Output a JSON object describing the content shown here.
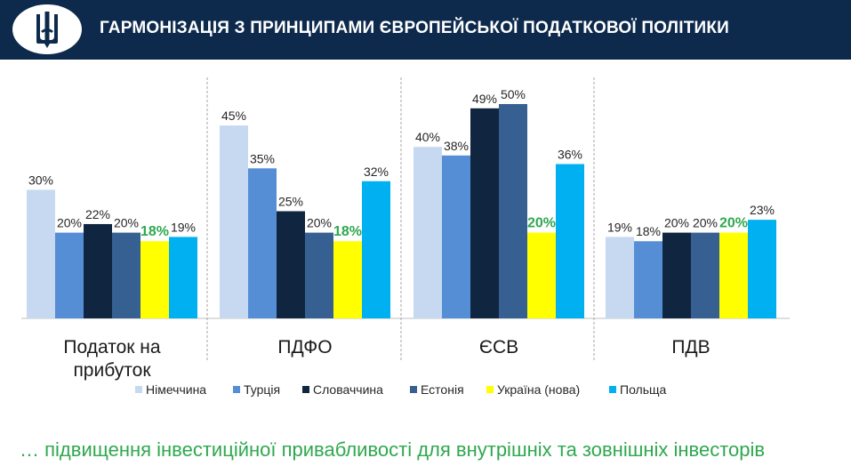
{
  "header": {
    "title": "ГАРМОНІЗАЦІЯ З ПРИНЦИПАМИ ЄВРОПЕЙСЬКОЇ ПОДАТКОВОЇ ПОЛІТИКИ",
    "logo_icon": "trident-emblem-icon"
  },
  "chart_data": {
    "type": "bar",
    "categories": [
      "Податок на прибуток",
      "ПДФО",
      "ЄСВ",
      "ПДВ"
    ],
    "series": [
      {
        "name": "Німеччина",
        "color": "#c6d9f1",
        "values": [
          30,
          45,
          40,
          19
        ]
      },
      {
        "name": "Турція",
        "color": "#558ed5",
        "values": [
          20,
          35,
          38,
          18
        ]
      },
      {
        "name": "Словаччина",
        "color": "#10253f",
        "values": [
          22,
          25,
          49,
          20
        ]
      },
      {
        "name": "Естонія",
        "color": "#376092",
        "values": [
          20,
          20,
          50,
          20
        ]
      },
      {
        "name": "Україна (нова)",
        "color": "#ffff00",
        "values": [
          18,
          18,
          20,
          20
        ]
      },
      {
        "name": "Польща",
        "color": "#00b0f0",
        "values": [
          19,
          32,
          36,
          23
        ]
      }
    ],
    "data_labels": [
      [
        "30%",
        "20%",
        "22%",
        "20%",
        "18%",
        "19%"
      ],
      [
        "45%",
        "35%",
        "25%",
        "20%",
        "18%",
        "32%"
      ],
      [
        "40%",
        "38%",
        "49%",
        "50%",
        "20%",
        "36%"
      ],
      [
        "19%",
        "18%",
        "20%",
        "20%",
        "20%",
        "23%"
      ]
    ],
    "highlight_series": "Україна (нова)",
    "highlight_label_color": "#2fa84f",
    "ylim": [
      0,
      50
    ],
    "grid": false,
    "legend_position": "bottom"
  },
  "footer": {
    "text": "… підвищення інвестиційної привабливості для внутрішніх та зовнішніх інвесторів"
  }
}
